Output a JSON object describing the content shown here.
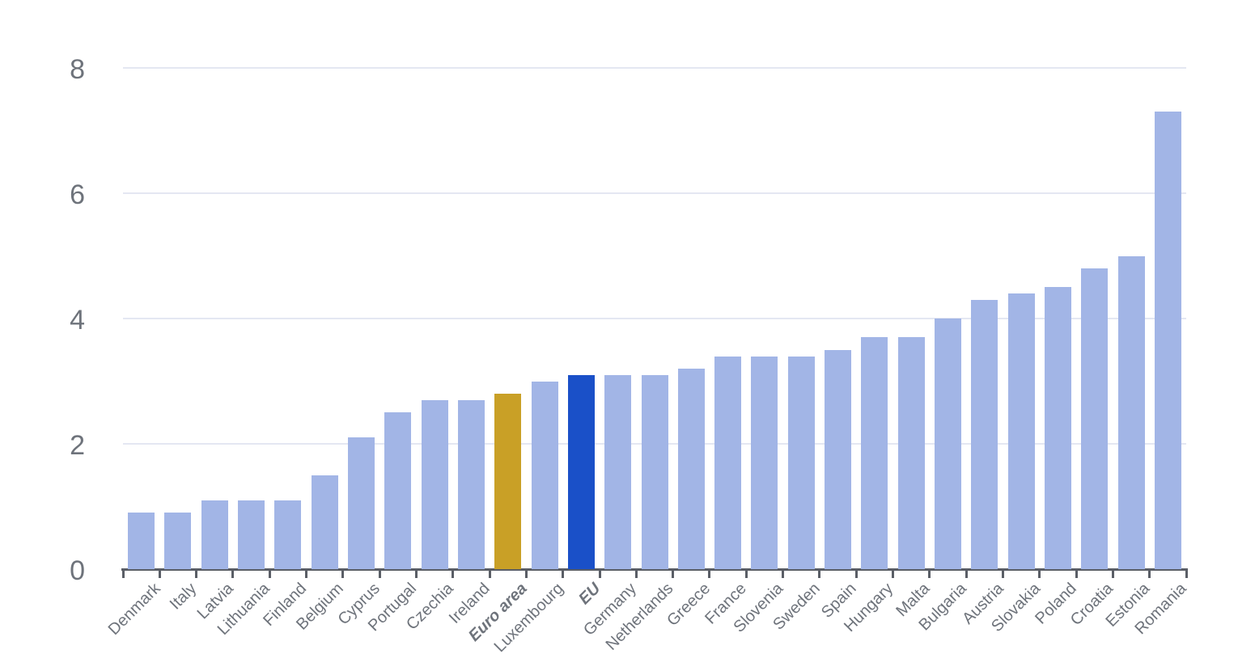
{
  "chart_data": {
    "type": "bar",
    "title": "",
    "xlabel": "",
    "ylabel": "",
    "categories": [
      "Denmark",
      "Italy",
      "Latvia",
      "Lithuania",
      "Finland",
      "Belgium",
      "Cyprus",
      "Portugal",
      "Czechia",
      "Ireland",
      "Euro area",
      "Luxembourg",
      "EU",
      "Germany",
      "Netherlands",
      "Greece",
      "France",
      "Slovenia",
      "Sweden",
      "Spain",
      "Hungary",
      "Malta",
      "Bulgaria",
      "Austria",
      "Slovakia",
      "Poland",
      "Croatia",
      "Estonia",
      "Romania"
    ],
    "values": [
      0.9,
      0.9,
      1.1,
      1.1,
      1.1,
      1.5,
      2.1,
      2.5,
      2.7,
      2.7,
      2.8,
      3.0,
      3.1,
      3.1,
      3.1,
      3.2,
      3.4,
      3.4,
      3.4,
      3.5,
      3.7,
      3.7,
      4.0,
      4.3,
      4.4,
      4.5,
      4.8,
      5.0,
      7.3
    ],
    "emphasized_categories": [
      "Euro area",
      "EU"
    ],
    "yticks": [
      0,
      2,
      4,
      6,
      8
    ],
    "ytick_labels": [
      "0",
      "2",
      "4",
      "6",
      "8"
    ],
    "ylim": [
      0,
      8.8
    ],
    "grid": "horizontal",
    "legend": "none"
  },
  "style": {
    "bar_default_color": "#A2B5E6",
    "bar_highlight_colors": {
      "Euro area": "#C9A026",
      "EU": "#1A50C8"
    },
    "gridline_color": "#E4E7F2",
    "axis_color": "#5A5E66",
    "label_color": "#6E737B",
    "background_color": "#FFFFFF"
  }
}
